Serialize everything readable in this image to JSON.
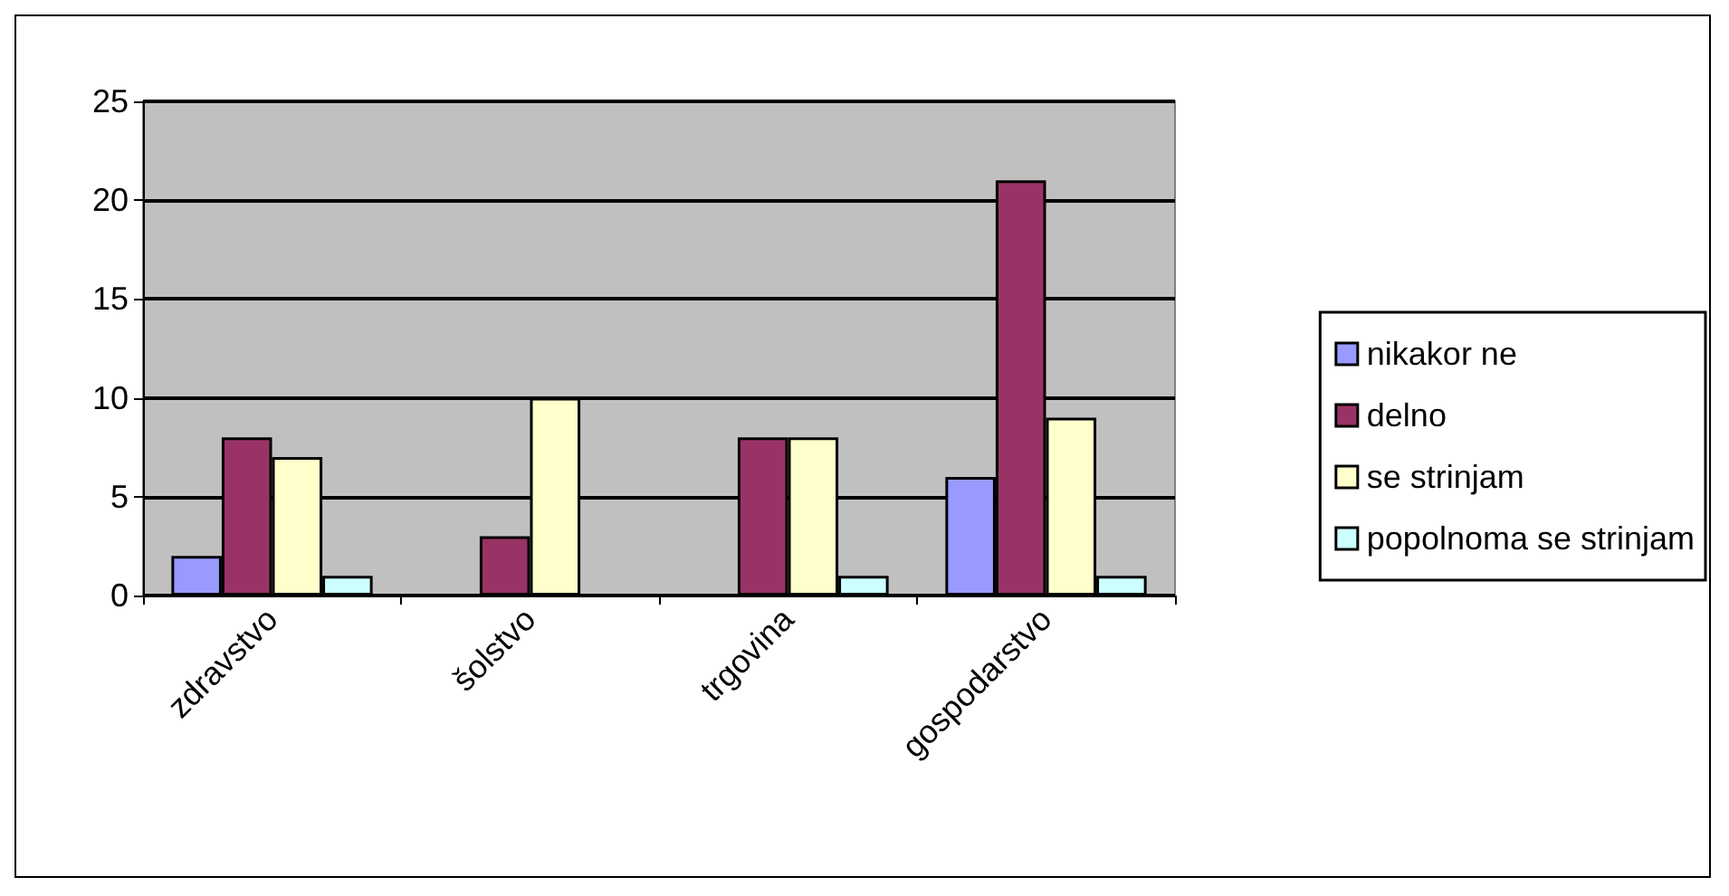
{
  "chart_data": {
    "type": "bar",
    "categories": [
      "zdravstvo",
      "šolstvo",
      "trgovina",
      "gospodarstvo"
    ],
    "series": [
      {
        "name": "nikakor ne",
        "color": "#9999ff",
        "values": [
          2,
          null,
          null,
          6
        ]
      },
      {
        "name": "delno",
        "color": "#993366",
        "values": [
          8,
          3,
          8,
          21
        ]
      },
      {
        "name": "se strinjam",
        "color": "#ffffcc",
        "values": [
          7,
          10,
          8,
          9
        ]
      },
      {
        "name": "popolnoma se strinjam",
        "color": "#ccffff",
        "values": [
          1,
          null,
          1,
          1
        ]
      }
    ],
    "ylim": [
      0,
      25
    ],
    "yticks": [
      0,
      5,
      10,
      15,
      20,
      25
    ],
    "grid": "y",
    "legend": "right"
  }
}
